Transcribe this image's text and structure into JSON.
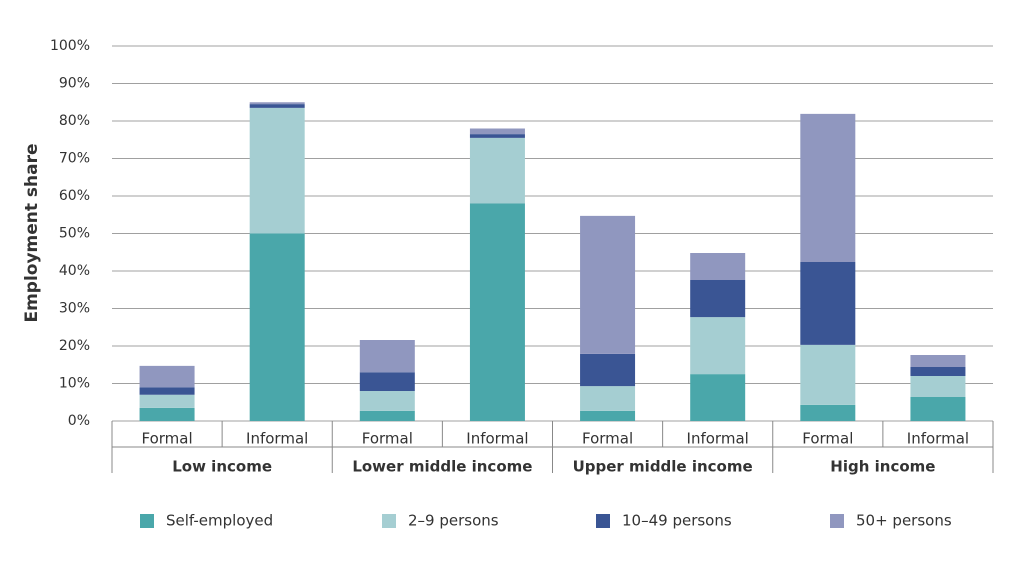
{
  "chart_data": {
    "type": "stacked_bar",
    "y_label": "Employment share",
    "categories": [
      "Formal",
      "Informal",
      "Formal",
      "Informal",
      "Formal",
      "Informal",
      "Formal",
      "Informal"
    ],
    "groups": [
      "Low income",
      "Lower middle income",
      "Upper middle income",
      "High income"
    ],
    "series": [
      {
        "name": "Self-employed",
        "color": "#4aa7aa",
        "values": [
          3.5,
          50,
          2.7,
          58,
          2.7,
          12.5,
          4.3,
          6.4
        ]
      },
      {
        "name": "2–9 persons",
        "color": "#a5ced2",
        "values": [
          3.5,
          33.5,
          5.3,
          17.5,
          6.6,
          15.2,
          16,
          5.6
        ]
      },
      {
        "name": "10–49 persons",
        "color": "#3a5594",
        "values": [
          2,
          1,
          5,
          1,
          8.6,
          9.9,
          22.1,
          2.4
        ]
      },
      {
        "name": "50+ persons",
        "color": "#9097bf",
        "values": [
          5.7,
          0.5,
          8.6,
          1.5,
          36.8,
          7.2,
          39.5,
          3.2
        ]
      }
    ],
    "ylim": [
      0,
      100
    ],
    "yticks": [
      {
        "value": 0,
        "label": "0%"
      },
      {
        "value": 10,
        "label": "10%"
      },
      {
        "value": 20,
        "label": "20%"
      },
      {
        "value": 30,
        "label": "30%"
      },
      {
        "value": 40,
        "label": "40%"
      },
      {
        "value": 50,
        "label": "50%"
      },
      {
        "value": 60,
        "label": "60%"
      },
      {
        "value": 70,
        "label": "70%"
      },
      {
        "value": 80,
        "label": "80%"
      },
      {
        "value": 90,
        "label": "90%"
      },
      {
        "value": 100,
        "label": "100%"
      }
    ],
    "grid": true
  }
}
